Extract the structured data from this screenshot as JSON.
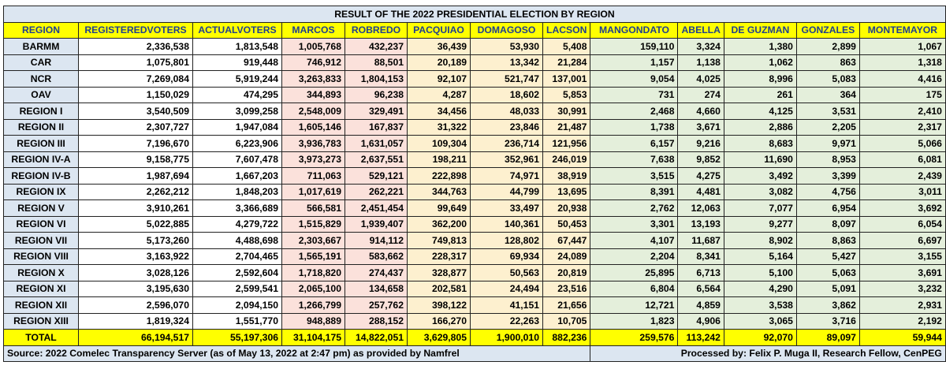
{
  "title": "RESULT OF THE 2022 PRESIDENTIAL ELECTION BY REGION",
  "headers": [
    "REGION",
    "REGISTEREDVOTERS",
    "ACTUALVOTERS",
    "MARCOS",
    "ROBREDO",
    "PACQUIAO",
    "DOMAGOSO",
    "LACSON",
    "MANGONDATO",
    "ABELLA",
    "DE GUZMAN",
    "GONZALES",
    "MONTEMAYOR"
  ],
  "rows": [
    [
      "BARMM",
      "2,336,538",
      "1,813,548",
      "1,005,768",
      "432,237",
      "36,439",
      "53,930",
      "5,408",
      "159,110",
      "3,324",
      "1,380",
      "2,899",
      "1,067"
    ],
    [
      "CAR",
      "1,075,801",
      "919,448",
      "746,912",
      "88,501",
      "20,189",
      "13,342",
      "21,284",
      "1,157",
      "1,138",
      "1,062",
      "863",
      "1,318"
    ],
    [
      "NCR",
      "7,269,084",
      "5,919,244",
      "3,263,833",
      "1,804,153",
      "92,107",
      "521,747",
      "137,001",
      "9,054",
      "4,025",
      "8,996",
      "5,083",
      "4,416"
    ],
    [
      "OAV",
      "1,150,029",
      "474,295",
      "344,893",
      "96,238",
      "4,287",
      "18,602",
      "5,853",
      "731",
      "274",
      "261",
      "364",
      "175"
    ],
    [
      "REGION I",
      "3,540,509",
      "3,099,258",
      "2,548,009",
      "329,491",
      "34,456",
      "48,033",
      "30,991",
      "2,468",
      "4,660",
      "4,125",
      "3,531",
      "2,410"
    ],
    [
      "REGION II",
      "2,307,727",
      "1,947,084",
      "1,605,146",
      "167,837",
      "31,322",
      "23,846",
      "21,487",
      "1,738",
      "3,671",
      "2,886",
      "2,205",
      "2,317"
    ],
    [
      "REGION III",
      "7,196,670",
      "6,223,906",
      "3,936,783",
      "1,631,057",
      "109,304",
      "236,714",
      "121,956",
      "6,157",
      "9,216",
      "8,683",
      "9,971",
      "5,066"
    ],
    [
      "REGION IV-A",
      "9,158,775",
      "7,607,478",
      "3,973,273",
      "2,637,551",
      "198,211",
      "352,961",
      "246,019",
      "7,638",
      "9,852",
      "11,690",
      "8,953",
      "6,081"
    ],
    [
      "REGION IV-B",
      "1,987,694",
      "1,667,203",
      "711,063",
      "529,121",
      "222,898",
      "74,971",
      "38,919",
      "3,515",
      "4,275",
      "3,492",
      "3,399",
      "2,439"
    ],
    [
      "REGION IX",
      "2,262,212",
      "1,848,203",
      "1,017,619",
      "262,221",
      "344,763",
      "44,799",
      "13,695",
      "8,391",
      "4,481",
      "3,082",
      "4,756",
      "3,011"
    ],
    [
      "REGION V",
      "3,910,261",
      "3,366,689",
      "566,581",
      "2,451,454",
      "99,649",
      "33,497",
      "20,938",
      "2,762",
      "12,063",
      "7,077",
      "6,954",
      "3,692"
    ],
    [
      "REGION VI",
      "5,022,885",
      "4,279,722",
      "1,515,829",
      "1,939,407",
      "362,200",
      "140,361",
      "50,453",
      "3,301",
      "13,193",
      "9,277",
      "8,097",
      "6,054"
    ],
    [
      "REGION VII",
      "5,173,260",
      "4,488,698",
      "2,303,667",
      "914,112",
      "749,813",
      "128,802",
      "67,447",
      "4,107",
      "11,687",
      "8,902",
      "8,863",
      "6,697"
    ],
    [
      "REGION VIII",
      "3,163,922",
      "2,704,465",
      "1,565,191",
      "583,662",
      "228,317",
      "69,934",
      "24,089",
      "2,204",
      "8,341",
      "5,164",
      "5,427",
      "3,155"
    ],
    [
      "REGION X",
      "3,028,126",
      "2,592,604",
      "1,718,820",
      "274,437",
      "328,877",
      "50,563",
      "20,819",
      "25,895",
      "6,713",
      "5,100",
      "5,063",
      "3,691"
    ],
    [
      "REGION XI",
      "3,195,630",
      "2,599,541",
      "2,065,100",
      "134,658",
      "202,581",
      "24,494",
      "23,516",
      "6,804",
      "6,564",
      "4,290",
      "5,091",
      "3,232"
    ],
    [
      "REGION XII",
      "2,596,070",
      "2,094,150",
      "1,266,799",
      "257,762",
      "398,122",
      "41,151",
      "21,656",
      "12,721",
      "4,859",
      "3,538",
      "3,862",
      "2,931"
    ],
    [
      "REGION XIII",
      "1,819,324",
      "1,551,770",
      "948,889",
      "288,152",
      "166,270",
      "22,263",
      "10,705",
      "1,823",
      "4,906",
      "3,065",
      "3,716",
      "2,192"
    ]
  ],
  "total": [
    "TOTAL",
    "66,194,517",
    "55,197,306",
    "31,104,175",
    "14,822,051",
    "3,629,805",
    "1,900,010",
    "882,236",
    "259,576",
    "113,242",
    "92,070",
    "89,097",
    "59,944"
  ],
  "footer": {
    "source": "Source: 2022 Comelec Transparency Server (as of May 13, 2022 at 2:47 pm) as provided by Namfrel",
    "credit": "Processed by: Felix P. Muga II, Research Fellow, CenPEG"
  },
  "colors": {
    "header_bg": "#ffff00",
    "header_text": "#1f3f8f",
    "region_bg": "#dce6f1",
    "marcos_robredo_bg": "#fbe1db",
    "pacquiao_domagoso_lacson_bg": "#fdf0cf",
    "minor_candidates_bg": "#e4efdb"
  }
}
